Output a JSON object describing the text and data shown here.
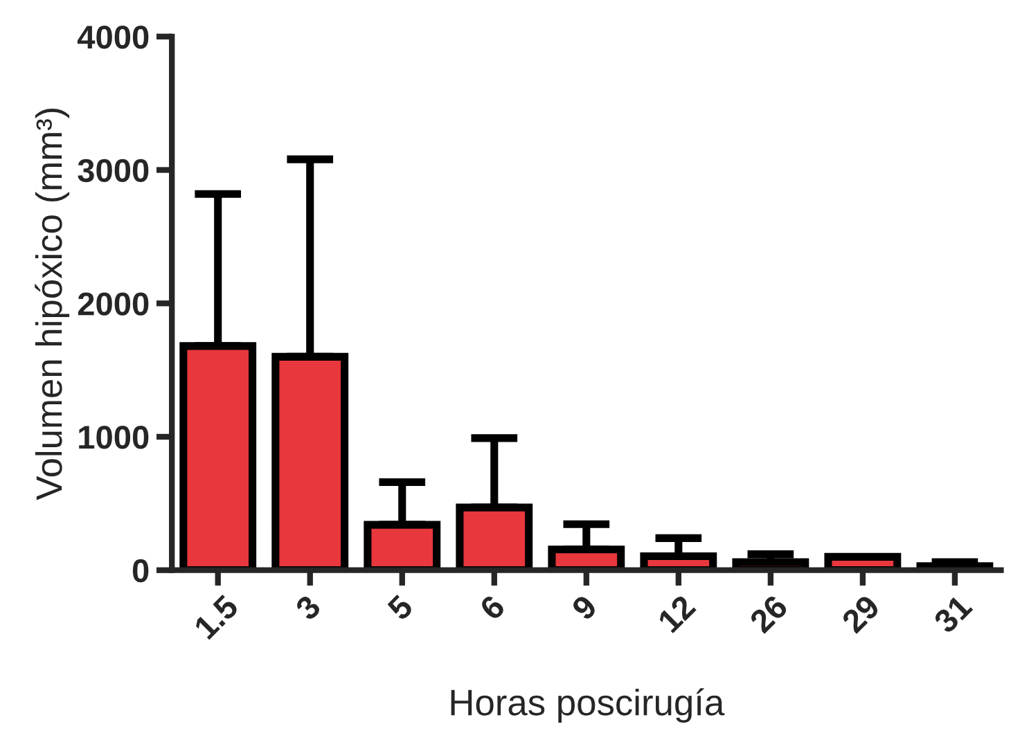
{
  "chart_data": {
    "type": "bar",
    "xlabel": "Horas poscirugía",
    "ylabel": "Volumen hipóxico (mm³)",
    "categories": [
      "1.5",
      "3",
      "5",
      "6",
      "9",
      "12",
      "26",
      "29",
      "31"
    ],
    "values": [
      1680,
      1600,
      340,
      470,
      155,
      105,
      60,
      100,
      30
    ],
    "errors": [
      [
        1680,
        2820
      ],
      [
        1600,
        3080
      ],
      [
        340,
        660
      ],
      [
        470,
        990
      ],
      [
        155,
        345
      ],
      [
        105,
        240
      ],
      [
        60,
        120
      ],
      null,
      [
        30,
        60
      ]
    ],
    "color": "#e8383d",
    "ylim": [
      0,
      4000
    ],
    "yticks": [
      0,
      1000,
      2000,
      3000,
      4000
    ],
    "grid": false,
    "legend": false
  }
}
